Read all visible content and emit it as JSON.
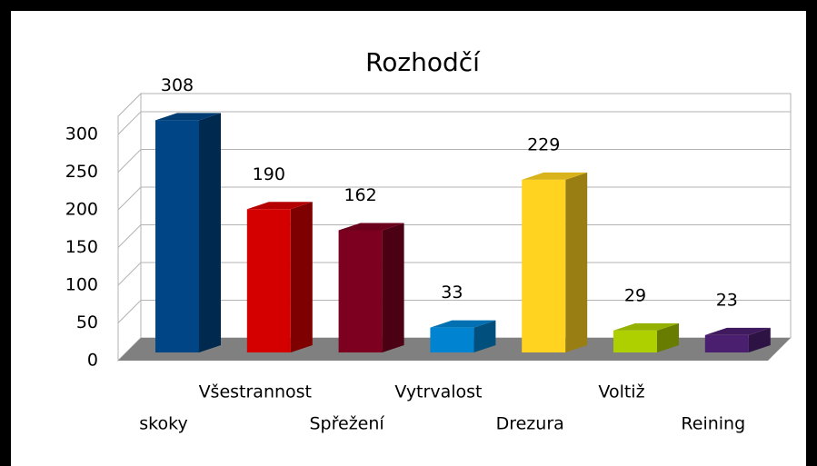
{
  "chart_data": {
    "type": "bar3d",
    "title": "Rozhodčí",
    "categories": [
      "skoky",
      "Všestrannost",
      "Spřežení",
      "Vytrvalost",
      "Drezura",
      "Voltiž",
      "Reining"
    ],
    "values": [
      308,
      190,
      162,
      33,
      229,
      29,
      23
    ],
    "colors": [
      "#004586",
      "#d40000",
      "#7e0021",
      "#0084d1",
      "#ffd320",
      "#aecf00",
      "#4b1f6f"
    ],
    "ylim": [
      0,
      300
    ],
    "yticks": [
      0,
      50,
      100,
      150,
      200,
      250,
      300
    ],
    "grid": true
  }
}
